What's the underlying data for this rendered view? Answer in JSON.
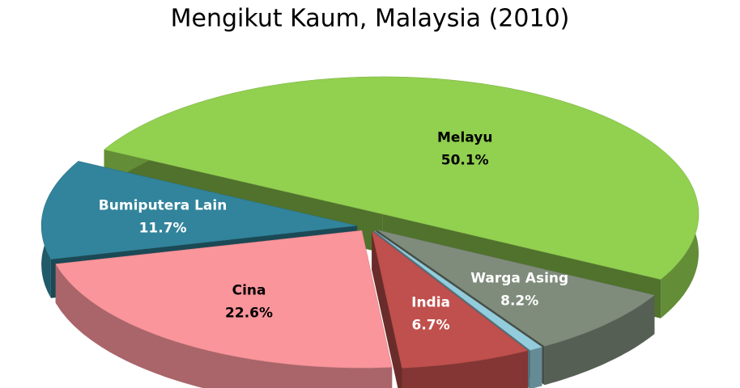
{
  "chart_data": {
    "type": "pie",
    "title": "Mengikut Kaum, Malaysia (2010)",
    "categories": [
      "Melayu",
      "Warga Asing",
      null,
      "India",
      "Cina",
      "Bumiputera Lain"
    ],
    "values": [
      50.1,
      8.2,
      0.7,
      6.7,
      22.6,
      11.7
    ],
    "value_labels": [
      "50.1%",
      "8.2%",
      null,
      "6.7%",
      "22.6%",
      "11.7%"
    ],
    "colors": [
      "#92d050",
      "#7f8c7c",
      "#93cddd",
      "#c0504d",
      "#f9959b",
      "#31849b"
    ]
  }
}
